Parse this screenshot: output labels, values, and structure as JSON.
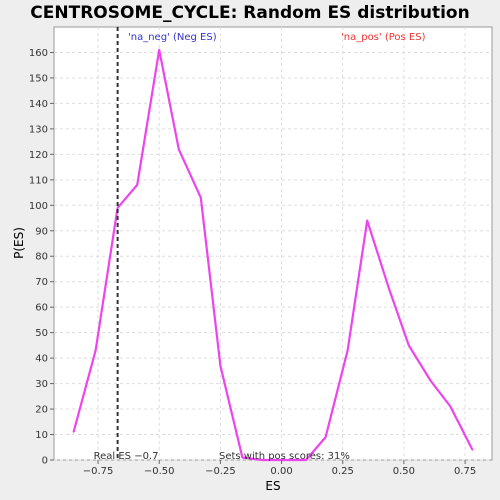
{
  "chart_data": {
    "type": "line",
    "title": "CENTROSOME_CYCLE: Random ES distribution",
    "xlabel": "ES",
    "ylabel": "P(ES)",
    "xlim": [
      -0.93,
      0.86
    ],
    "ylim": [
      0,
      170
    ],
    "x_ticks": [
      {
        "value": -0.75,
        "label": "−0.75"
      },
      {
        "value": -0.5,
        "label": "−0.50"
      },
      {
        "value": -0.25,
        "label": "−0.25"
      },
      {
        "value": 0.0,
        "label": "0.00"
      },
      {
        "value": 0.25,
        "label": "0.25"
      },
      {
        "value": 0.5,
        "label": "0.50"
      },
      {
        "value": 0.75,
        "label": "0.75"
      }
    ],
    "y_ticks": [
      0,
      10,
      20,
      30,
      40,
      50,
      60,
      70,
      80,
      90,
      100,
      110,
      120,
      130,
      140,
      150,
      160
    ],
    "grid": true,
    "series": [
      {
        "color": "#ee44ee",
        "x": [
          -0.85,
          -0.76,
          -0.67,
          -0.59,
          -0.5,
          -0.42,
          -0.33,
          -0.25,
          -0.16,
          -0.08,
          0.01,
          0.1,
          0.18,
          0.27,
          0.35,
          0.44,
          0.52,
          0.61,
          0.69,
          0.78
        ],
        "y": [
          11,
          43,
          99,
          108,
          161,
          122,
          103,
          37,
          1,
          0,
          0,
          0,
          9,
          43,
          94,
          67,
          45,
          31,
          21,
          4
        ]
      }
    ],
    "real_es": {
      "value": -0.67,
      "label": "Real ES −0.7"
    },
    "annotations": {
      "neg_label": "'na_neg' (Neg ES)",
      "neg_color": "#3333cc",
      "pos_label": "'na_pos' (Pos ES)",
      "pos_color": "#ee3333",
      "sets_note": "Sets with pos scores: 31%"
    }
  }
}
